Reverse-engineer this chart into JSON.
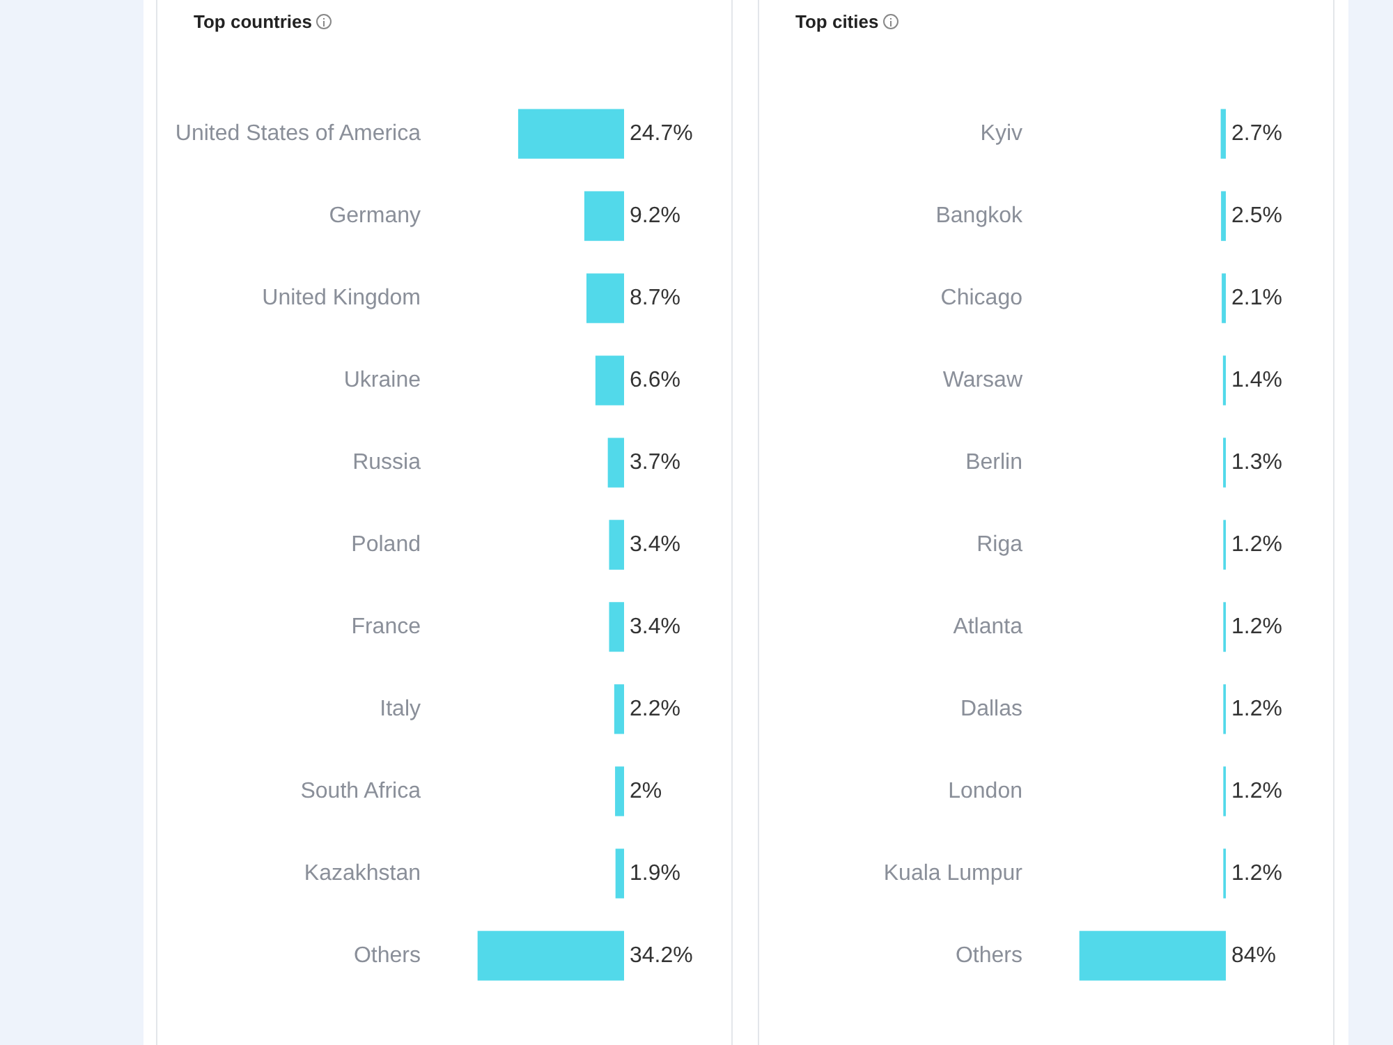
{
  "chart_data": [
    {
      "type": "bar",
      "orientation": "horizontal",
      "title": "Top countries",
      "tick_labels": "y",
      "color": "#52d9ea",
      "categories": [
        "United States of America",
        "Germany",
        "United Kingdom",
        "Ukraine",
        "Russia",
        "Poland",
        "France",
        "Italy",
        "South Africa",
        "Kazakhstan",
        "Others"
      ],
      "values": [
        24.7,
        9.2,
        8.7,
        6.6,
        3.7,
        3.4,
        3.4,
        2.2,
        2,
        1.9,
        34.2
      ],
      "value_labels": [
        "24.7%",
        "9.2%",
        "8.7%",
        "6.6%",
        "3.7%",
        "3.4%",
        "3.4%",
        "2.2%",
        "2%",
        "1.9%",
        "34.2%"
      ]
    },
    {
      "type": "bar",
      "orientation": "horizontal",
      "title": "Top cities",
      "tick_labels": "y",
      "color": "#52d9ea",
      "categories": [
        "Kyiv",
        "Bangkok",
        "Chicago",
        "Warsaw",
        "Berlin",
        "Riga",
        "Atlanta",
        "Dallas",
        "London",
        "Kuala Lumpur",
        "Others"
      ],
      "values": [
        2.7,
        2.5,
        2.1,
        1.4,
        1.3,
        1.2,
        1.2,
        1.2,
        1.2,
        1.2,
        84
      ],
      "value_labels": [
        "2.7%",
        "2.5%",
        "2.1%",
        "1.4%",
        "1.3%",
        "1.2%",
        "1.2%",
        "1.2%",
        "1.2%",
        "1.2%",
        "84%"
      ]
    }
  ]
}
